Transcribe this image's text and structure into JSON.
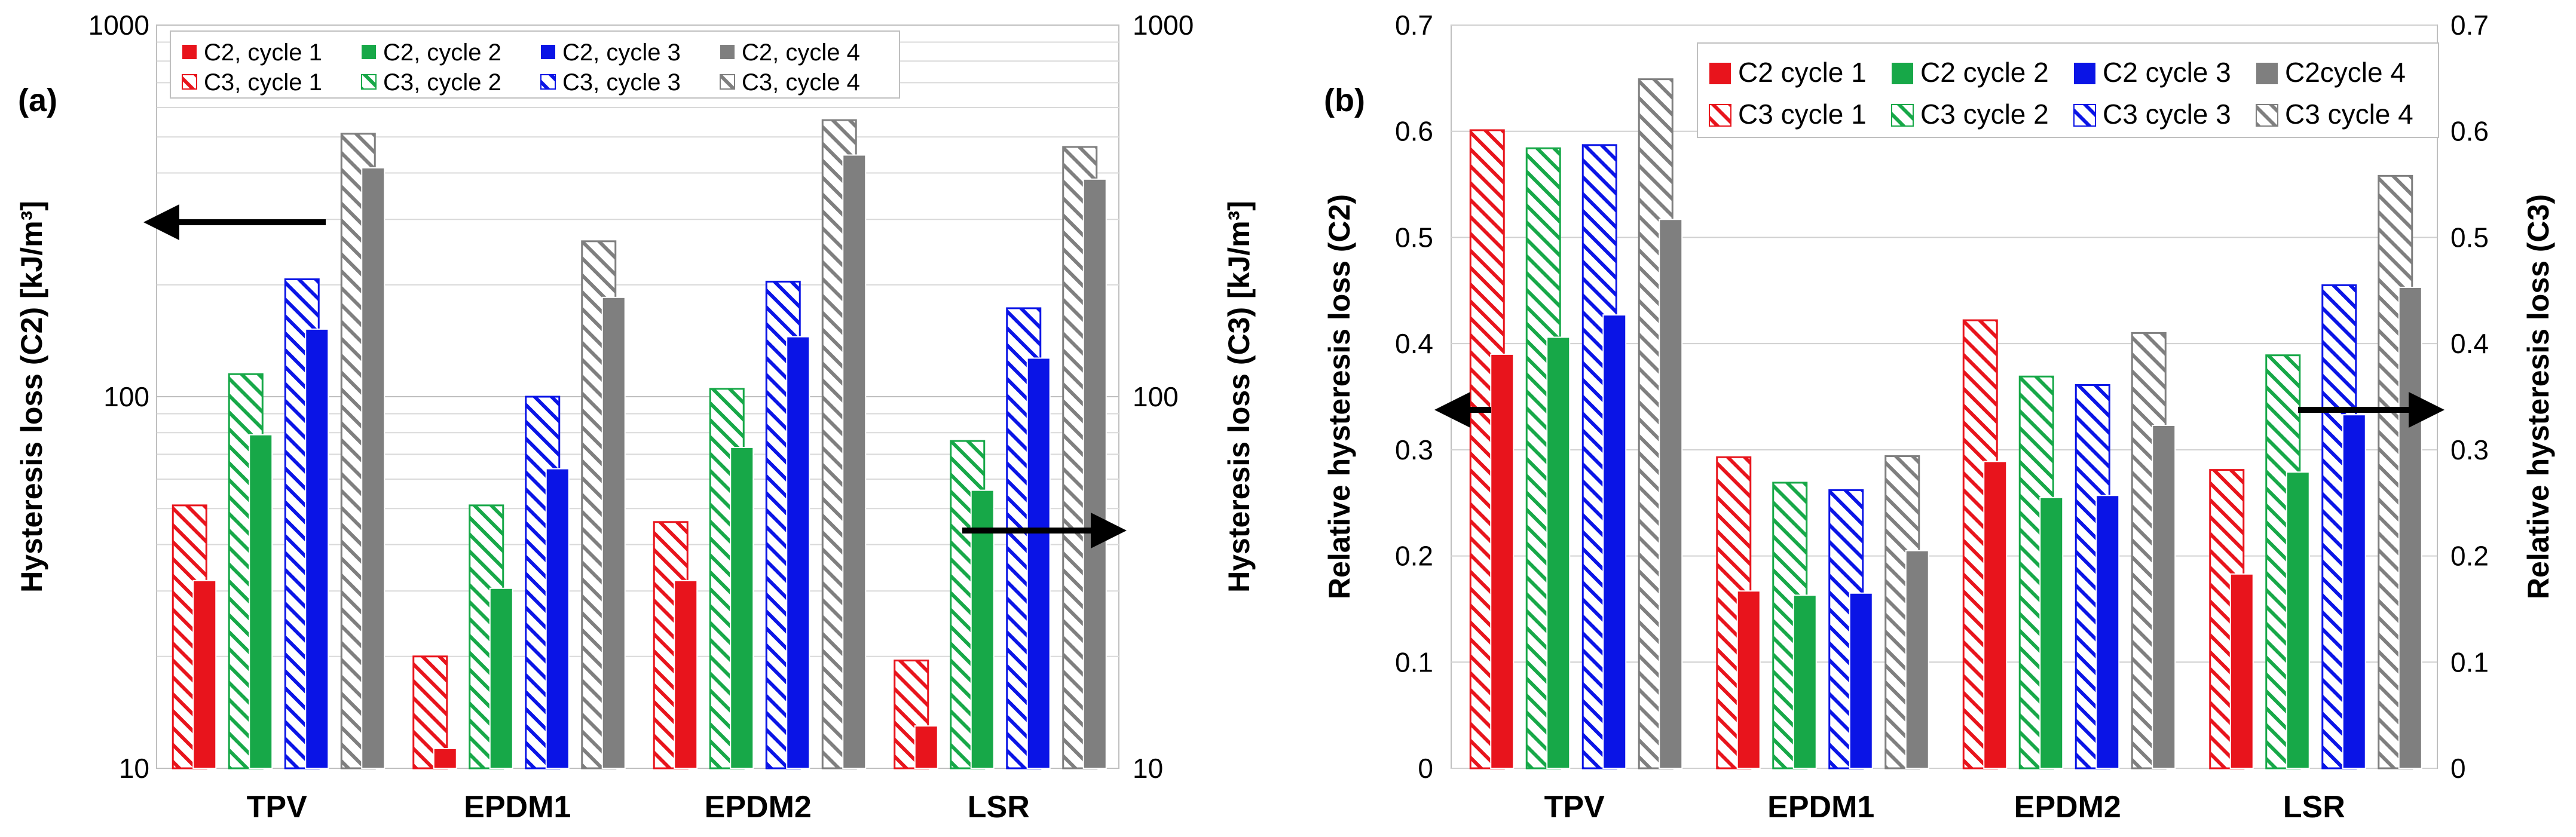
{
  "chart_data": [
    {
      "panel": "(a)",
      "type": "bar",
      "yscale": "log",
      "categories": [
        "TPV",
        "EPDM1",
        "EPDM2",
        "LSR"
      ],
      "ylabel": "Hysteresis loss (C2) [kJ/m³]",
      "y2label": "Hysteresis loss (C3) [kJ/m³]",
      "ylim": [
        10,
        1000
      ],
      "yticks": [
        "10",
        "100",
        "1000"
      ],
      "y2ticks": [
        "10",
        "100",
        "1000"
      ],
      "grid": true,
      "legend_location": "top",
      "arrows": [
        {
          "points_to": "left axis",
          "series_group": "C2"
        },
        {
          "points_to": "right axis",
          "series_group": "C3"
        }
      ],
      "series": [
        {
          "name": "C2, cycle 1",
          "color": "#e8141c",
          "pattern": "solid",
          "values": [
            32,
            11.3,
            32,
            13
          ]
        },
        {
          "name": "C3, cycle 1",
          "color": "#e8141c",
          "pattern": "hatched",
          "values": [
            51,
            20,
            46,
            19.5
          ]
        },
        {
          "name": "C2, cycle 2",
          "color": "#17a848",
          "pattern": "solid",
          "values": [
            79,
            30.5,
            73,
            56
          ]
        },
        {
          "name": "C3, cycle 2",
          "color": "#17a848",
          "pattern": "hatched",
          "values": [
            115,
            51,
            105,
            76
          ]
        },
        {
          "name": "C2, cycle 3",
          "color": "#0a14e6",
          "pattern": "solid",
          "values": [
            152,
            64,
            145,
            127
          ]
        },
        {
          "name": "C3, cycle 3",
          "color": "#0a14e6",
          "pattern": "hatched",
          "values": [
            207,
            100,
            204,
            173
          ]
        },
        {
          "name": "C2, cycle 4",
          "color": "#7f7f7f",
          "pattern": "solid",
          "values": [
            413,
            185,
            447,
            385
          ]
        },
        {
          "name": "C3, cycle 4",
          "color": "#7f7f7f",
          "pattern": "hatched",
          "values": [
            510,
            262,
            555,
            470
          ]
        }
      ]
    },
    {
      "panel": "(b)",
      "type": "bar",
      "yscale": "linear",
      "categories": [
        "TPV",
        "EPDM1",
        "EPDM2",
        "LSR"
      ],
      "ylabel": "Relative hysteresis loss (C2)",
      "y2label": "Relative hysteresis loss (C3)",
      "ylim": [
        0,
        0.7
      ],
      "yticks": [
        "0",
        "0.1",
        "0.2",
        "0.3",
        "0.4",
        "0.5",
        "0.6",
        "0.7"
      ],
      "y2ticks": [
        "0",
        "0.1",
        "0.2",
        "0.3",
        "0.4",
        "0.5",
        "0.6",
        "0.7"
      ],
      "grid": true,
      "legend_location": "top",
      "arrows": [
        {
          "points_to": "left axis",
          "series_group": "C2"
        },
        {
          "points_to": "right axis",
          "series_group": "C3"
        }
      ],
      "series": [
        {
          "name": "C2 cycle 1",
          "color": "#e8141c",
          "pattern": "solid",
          "values": [
            0.39,
            0.167,
            0.289,
            0.183
          ]
        },
        {
          "name": "C3 cycle 1",
          "color": "#e8141c",
          "pattern": "hatched",
          "values": [
            0.601,
            0.293,
            0.422,
            0.281
          ]
        },
        {
          "name": "C2 cycle 2",
          "color": "#17a848",
          "pattern": "solid",
          "values": [
            0.406,
            0.163,
            0.255,
            0.279
          ]
        },
        {
          "name": "C3 cycle 2",
          "color": "#17a848",
          "pattern": "hatched",
          "values": [
            0.584,
            0.269,
            0.369,
            0.389
          ]
        },
        {
          "name": "C2 cycle 3",
          "color": "#0a14e6",
          "pattern": "solid",
          "values": [
            0.427,
            0.165,
            0.257,
            0.333
          ]
        },
        {
          "name": "C3 cycle 3",
          "color": "#0a14e6",
          "pattern": "hatched",
          "values": [
            0.587,
            0.262,
            0.361,
            0.455
          ]
        },
        {
          "name": "C2cycle 4",
          "color": "#7f7f7f",
          "pattern": "solid",
          "values": [
            0.517,
            0.205,
            0.323,
            0.453
          ]
        },
        {
          "name": "C3 cycle 4",
          "color": "#7f7f7f",
          "pattern": "hatched",
          "values": [
            0.649,
            0.294,
            0.41,
            0.558
          ]
        }
      ]
    }
  ]
}
